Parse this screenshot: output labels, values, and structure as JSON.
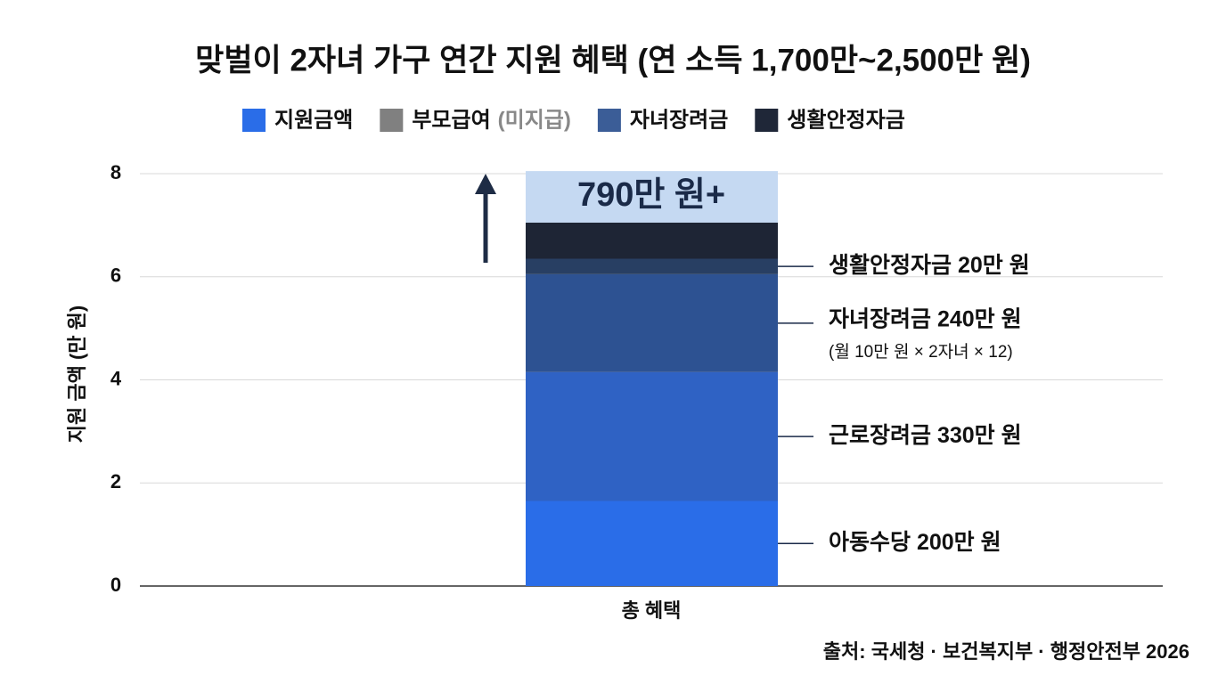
{
  "chart_data": {
    "type": "stacked-bar",
    "title": "맞벌이 2자녀 가구 연간 지원 혜택 (연 소득 1,700만~2,500만 원)",
    "y_label": "지원 금액 (만 원)",
    "source": "출처: 국세청 · 보건복지부 · 행정안전부 2026",
    "categories": [
      "총 혜택"
    ],
    "legend": [
      {
        "label": "지원금액",
        "color": "#2a6de8"
      },
      {
        "label": "부모급여",
        "note": "(미지급)",
        "color": "#808080"
      },
      {
        "label": "자녀장려금",
        "color": "#3b5d97"
      },
      {
        "label": "생활안정자금",
        "color": "#1f2738"
      }
    ],
    "series": [
      {
        "color": "#2a6de8",
        "values": [
          1.65
        ],
        "label": "아동수당 200만 원"
      },
      {
        "color": "#2f62c4",
        "values": [
          2.5
        ],
        "label": "근로장려금 330만 원"
      },
      {
        "color": "#2d5292",
        "values": [
          1.9
        ],
        "label": "자녀장려금 240만 원",
        "sublabel": "(월 10만 원 × 2자녀 × 12)"
      },
      {
        "color": "#283f63",
        "values": [
          0.3
        ],
        "label": "생활안정자금 20만 원"
      },
      {
        "color": "#1e2535",
        "values": [
          0.7
        ]
      },
      {
        "color": "#c5d9f2",
        "values": [
          1.0
        ],
        "value_labels": [
          "790만 원+"
        ]
      }
    ],
    "ylim": [
      0,
      8
    ],
    "yticks": [
      0,
      2,
      4,
      6,
      8
    ],
    "grid": true
  }
}
